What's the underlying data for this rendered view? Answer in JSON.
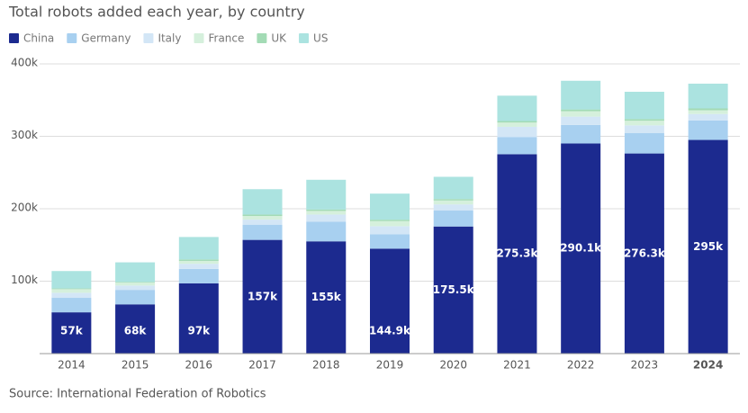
{
  "chart_data": {
    "type": "stacked_bar",
    "title": "Total robots added each year, by country",
    "source": "Source: International Federation of Robotics",
    "categories": [
      "2014",
      "2015",
      "2016",
      "2017",
      "2018",
      "2019",
      "2020",
      "2021",
      "2022",
      "2023",
      "2024"
    ],
    "series": [
      {
        "name": "China",
        "color": "#1c2a8f",
        "values": [
          57000,
          68000,
          97000,
          157000,
          155000,
          144900,
          175500,
          275300,
          290100,
          276300,
          295000
        ],
        "value_labels": [
          "57k",
          "68k",
          "97k",
          "157k",
          "155k",
          "144.9k",
          "175.5k",
          "275.3k",
          "290.1k",
          "276.3k",
          "295k"
        ]
      },
      {
        "name": "Germany",
        "color": "#a8d0f0",
        "values": [
          20000,
          20000,
          20000,
          21000,
          27000,
          20000,
          22000,
          23800,
          25600,
          28400,
          27000
        ]
      },
      {
        "name": "Italy",
        "color": "#d3e6f6",
        "values": [
          7000,
          6000,
          7000,
          7000,
          10000,
          11000,
          8500,
          14000,
          11500,
          10400,
          8800
        ]
      },
      {
        "name": "France",
        "color": "#d5f0dc",
        "values": [
          5000,
          4000,
          4000,
          5000,
          5000,
          7000,
          5400,
          5900,
          7400,
          6400,
          5200
        ]
      },
      {
        "name": "UK",
        "color": "#a3dbb5",
        "values": [
          1000,
          1000,
          2000,
          2000,
          2000,
          2000,
          2000,
          2100,
          2500,
          2400,
          2500
        ]
      },
      {
        "name": "US",
        "color": "#abe3e0",
        "values": [
          24000,
          27000,
          31000,
          35000,
          41000,
          36000,
          30700,
          35000,
          39600,
          37600,
          34200
        ]
      }
    ],
    "ylim": [
      0,
      400000
    ],
    "yticks": [
      {
        "value": 100000,
        "label": "100k"
      },
      {
        "value": 200000,
        "label": "200k"
      },
      {
        "value": 300000,
        "label": "300k"
      },
      {
        "value": 400000,
        "label": "400k"
      }
    ],
    "grid": true
  }
}
